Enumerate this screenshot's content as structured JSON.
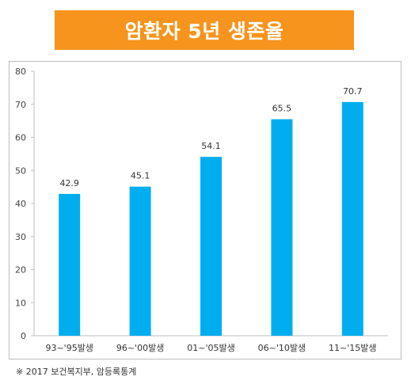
{
  "title": "암환자 5년 생존율",
  "source_note": "※ 2017 보건복지부, 암등록통계",
  "colors": {
    "banner": "#f7941d",
    "bar": "#00aeef",
    "grid": "#d9d9d9"
  },
  "chart_data": {
    "type": "bar",
    "title": "암환자 5년 생존율",
    "categories": [
      "93~'95발생",
      "96~'00발생",
      "01~'05발생",
      "06~'10발생",
      "11~'15발생"
    ],
    "values": [
      42.9,
      45.1,
      54.1,
      65.5,
      70.7
    ],
    "value_labels": [
      "42.9",
      "45.1",
      "54.1",
      "65.5",
      "70.7"
    ],
    "ylim": [
      0,
      80
    ],
    "yticks": [
      0,
      10,
      20,
      30,
      40,
      50,
      60,
      70,
      80
    ],
    "grid": false,
    "legend": false,
    "xlabel": "",
    "ylabel": ""
  }
}
